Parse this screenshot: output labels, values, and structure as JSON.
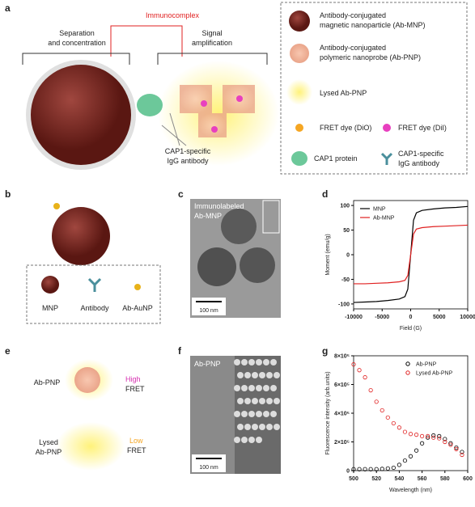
{
  "panels": {
    "a": {
      "label": "a",
      "immunocomplex": "Immunocomplex",
      "separation": [
        "Separation",
        "and concentration"
      ],
      "signal": [
        "Signal",
        "amplification"
      ],
      "antibody_note": [
        "CAP1-specific",
        "IgG antibody"
      ],
      "legend": {
        "ab_mnp": [
          "Antibody-conjugated",
          "magnetic nanoparticle (Ab-MNP)"
        ],
        "ab_pnp": [
          "Antibody-conjugated",
          "polymeric nanoprobe (Ab-PNP)"
        ],
        "lysed": "Lysed Ab-PNP",
        "dio": "FRET dye (DiO)",
        "dii": "FRET dye (DiI)",
        "cap1": "CAP1 protein",
        "igg": [
          "CAP1-specific",
          "IgG antibody"
        ]
      }
    },
    "b": {
      "label": "b",
      "legend": [
        "MNP",
        "Antibody",
        "Ab-AuNP"
      ]
    },
    "c": {
      "label": "c",
      "caption": [
        "Immunolabeled",
        "Ab-MNP"
      ],
      "scale": "100 nm"
    },
    "d": {
      "label": "d"
    },
    "e": {
      "label": "e",
      "top": "Ab-PNP",
      "high": [
        "High",
        "FRET"
      ],
      "bottom": [
        "Lysed",
        "Ab-PNP"
      ],
      "low": [
        "Low",
        "FRET"
      ]
    },
    "f": {
      "label": "f",
      "caption": "Ab-PNP",
      "scale": "100 nm"
    },
    "g": {
      "label": "g"
    }
  },
  "chart_data": [
    {
      "type": "line",
      "xlabel": "Field (G)",
      "ylabel": "Moment (emu/g)",
      "legend": "upper left",
      "x": [
        -10000,
        -8000,
        -6000,
        -4000,
        -2000,
        -1000,
        -500,
        0,
        500,
        1000,
        2000,
        4000,
        6000,
        8000,
        10000
      ],
      "series": [
        {
          "name": "MNP",
          "color": "#000000",
          "values": [
            -97,
            -96,
            -95,
            -93,
            -90,
            -85,
            -70,
            0,
            70,
            85,
            90,
            93,
            95,
            96,
            98
          ]
        },
        {
          "name": "Ab-MNP",
          "color": "#e02020",
          "values": [
            -59,
            -59,
            -58,
            -57,
            -55,
            -52,
            -42,
            0,
            42,
            52,
            55,
            57,
            58,
            59,
            60
          ]
        }
      ],
      "xlim": [
        -10000,
        10000
      ],
      "xticks": [
        -10000,
        -5000,
        0,
        5000,
        10000
      ],
      "ylim": [
        -110,
        110
      ],
      "yticks": [
        -100,
        -50,
        0,
        50,
        100
      ]
    },
    {
      "type": "scatter",
      "xlabel": "Wavelength (nm)",
      "ylabel": "Fluorescence intensity (arb.units)",
      "legend": "upper right",
      "x": [
        500,
        505,
        510,
        515,
        520,
        525,
        530,
        535,
        540,
        545,
        550,
        555,
        560,
        565,
        570,
        575,
        580,
        585,
        590,
        595
      ],
      "series": [
        {
          "name": "Ab-PNP",
          "color": "#000000",
          "values": [
            10000,
            10000,
            10000,
            10000,
            10000,
            12000,
            15000,
            20000,
            40000,
            70000,
            100000,
            140000,
            190000,
            230000,
            245000,
            240000,
            220000,
            190000,
            160000,
            130000
          ]
        },
        {
          "name": "Lysed Ab-PNP",
          "color": "#e02020",
          "values": [
            740000,
            700000,
            650000,
            560000,
            480000,
            420000,
            370000,
            330000,
            300000,
            270000,
            255000,
            250000,
            240000,
            240000,
            230000,
            225000,
            200000,
            180000,
            150000,
            110000
          ]
        }
      ],
      "xlim": [
        500,
        600
      ],
      "xticks": [
        500,
        520,
        540,
        560,
        580,
        600
      ],
      "ylim": [
        0,
        800000
      ],
      "yticks": [
        0,
        {
          "value": 200000,
          "label": "2×10⁵"
        },
        {
          "value": 400000,
          "label": "4×10⁵"
        },
        {
          "value": 600000,
          "label": "6×10⁵"
        },
        {
          "value": 800000,
          "label": "8×10⁵"
        }
      ]
    }
  ]
}
